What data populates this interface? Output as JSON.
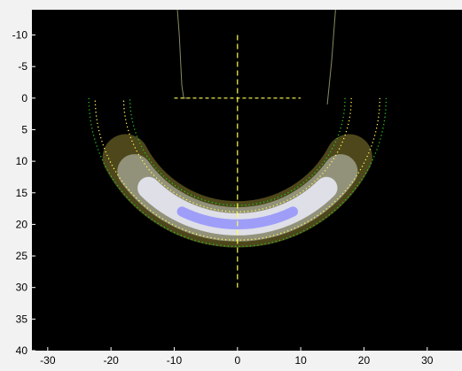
{
  "chart_data": {
    "type": "heatmap",
    "xlim": [
      -32.5,
      35.5
    ],
    "ylim": [
      -14,
      40
    ],
    "y_inverted": true,
    "grid": false,
    "legend": "none",
    "x_ticks": [
      "-30",
      "-20",
      "-10",
      "0",
      "10",
      "20",
      "30"
    ],
    "x_tick_values": [
      -30,
      -20,
      -10,
      0,
      10,
      20,
      30
    ],
    "y_ticks": [
      "-10",
      "-5",
      "0",
      "5",
      "10",
      "15",
      "20",
      "25",
      "30",
      "35",
      "40"
    ],
    "y_tick_values": [
      -10,
      -5,
      0,
      5,
      10,
      15,
      20,
      25,
      30,
      35,
      40
    ],
    "overlays": {
      "arc_center": [
        0,
        0
      ],
      "arc_sweep_deg": [
        0,
        180
      ],
      "arc_inner_yellow_radius": 18,
      "arc_outer_yellow_radius": 22.5,
      "arc_inner_green_radius": 17,
      "arc_outer_green_radius": 23.5,
      "horizontal_line": {
        "x": [
          -10,
          10
        ],
        "y": 0
      },
      "vertical_line": {
        "x": 0,
        "y": [
          -10,
          30
        ]
      },
      "focal_band": {
        "center": [
          0,
          0
        ],
        "radius": 20,
        "thickness": 3.5,
        "angle_range_deg": [
          28,
          152
        ]
      },
      "boundary_curves": [
        {
          "x": [
            -9.5,
            -9.2,
            -9.0,
            -8.8,
            -8.5,
            -8.0
          ],
          "y": [
            -14,
            -10,
            -6,
            -2,
            0,
            0
          ]
        },
        {
          "x": [
            15.5,
            15.2,
            14.9,
            14.6,
            14.3,
            14.2
          ],
          "y": [
            -14,
            -10,
            -6,
            -3,
            0,
            1
          ]
        }
      ]
    },
    "colors": {
      "background": "#000000",
      "figure": "#f2f2f2",
      "yellow_line": "#ffff55",
      "green_line": "#22cc22",
      "band_outer": "#5a5420",
      "band_mid": "#9a9a86",
      "band_inner": "#e4e4ee",
      "band_core": "#8888ff"
    }
  }
}
